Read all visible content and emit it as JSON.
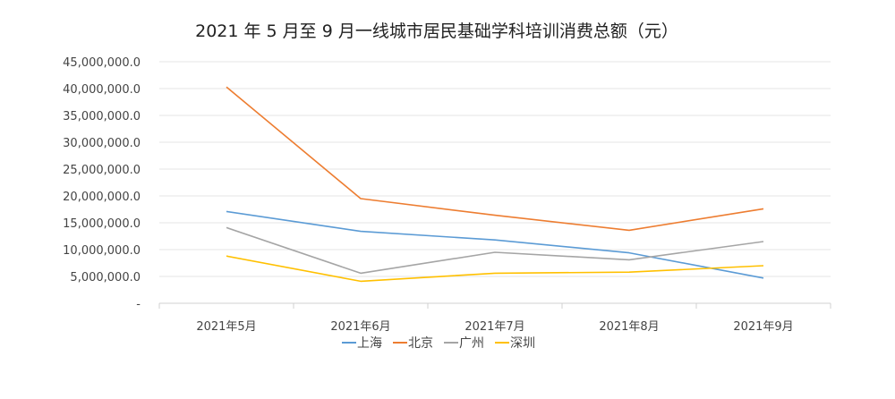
{
  "chart_data": {
    "type": "line",
    "title": "2021 年 5 月至 9 月一线城市居民基础学科培训消费总额（元）",
    "xlabel": "",
    "ylabel": "",
    "categories": [
      "2021年5月",
      "2021年6月",
      "2021年7月",
      "2021年8月",
      "2021年9月"
    ],
    "y_ticks": [
      0,
      5000000,
      10000000,
      15000000,
      20000000,
      25000000,
      30000000,
      35000000,
      40000000,
      45000000
    ],
    "y_tick_labels": [
      "-",
      "5,000,000.0",
      "10,000,000.0",
      "15,000,000.0",
      "20,000,000.0",
      "25,000,000.0",
      "30,000,000.0",
      "35,000,000.0",
      "40,000,000.0",
      "45,000,000.0"
    ],
    "ylim": [
      0,
      45000000
    ],
    "grid": true,
    "legend_position": "bottom",
    "series": [
      {
        "name": "上海",
        "color": "#5b9bd5",
        "values": [
          17100000,
          13400000,
          11800000,
          9400000,
          4700000
        ]
      },
      {
        "name": "北京",
        "color": "#ed7d31",
        "values": [
          40300000,
          19500000,
          16400000,
          13600000,
          17600000
        ]
      },
      {
        "name": "广州",
        "color": "#a5a5a5",
        "values": [
          14100000,
          5600000,
          9500000,
          8100000,
          11500000
        ]
      },
      {
        "name": "深圳",
        "color": "#ffc000",
        "values": [
          8800000,
          4100000,
          5600000,
          5800000,
          7000000
        ]
      }
    ]
  }
}
